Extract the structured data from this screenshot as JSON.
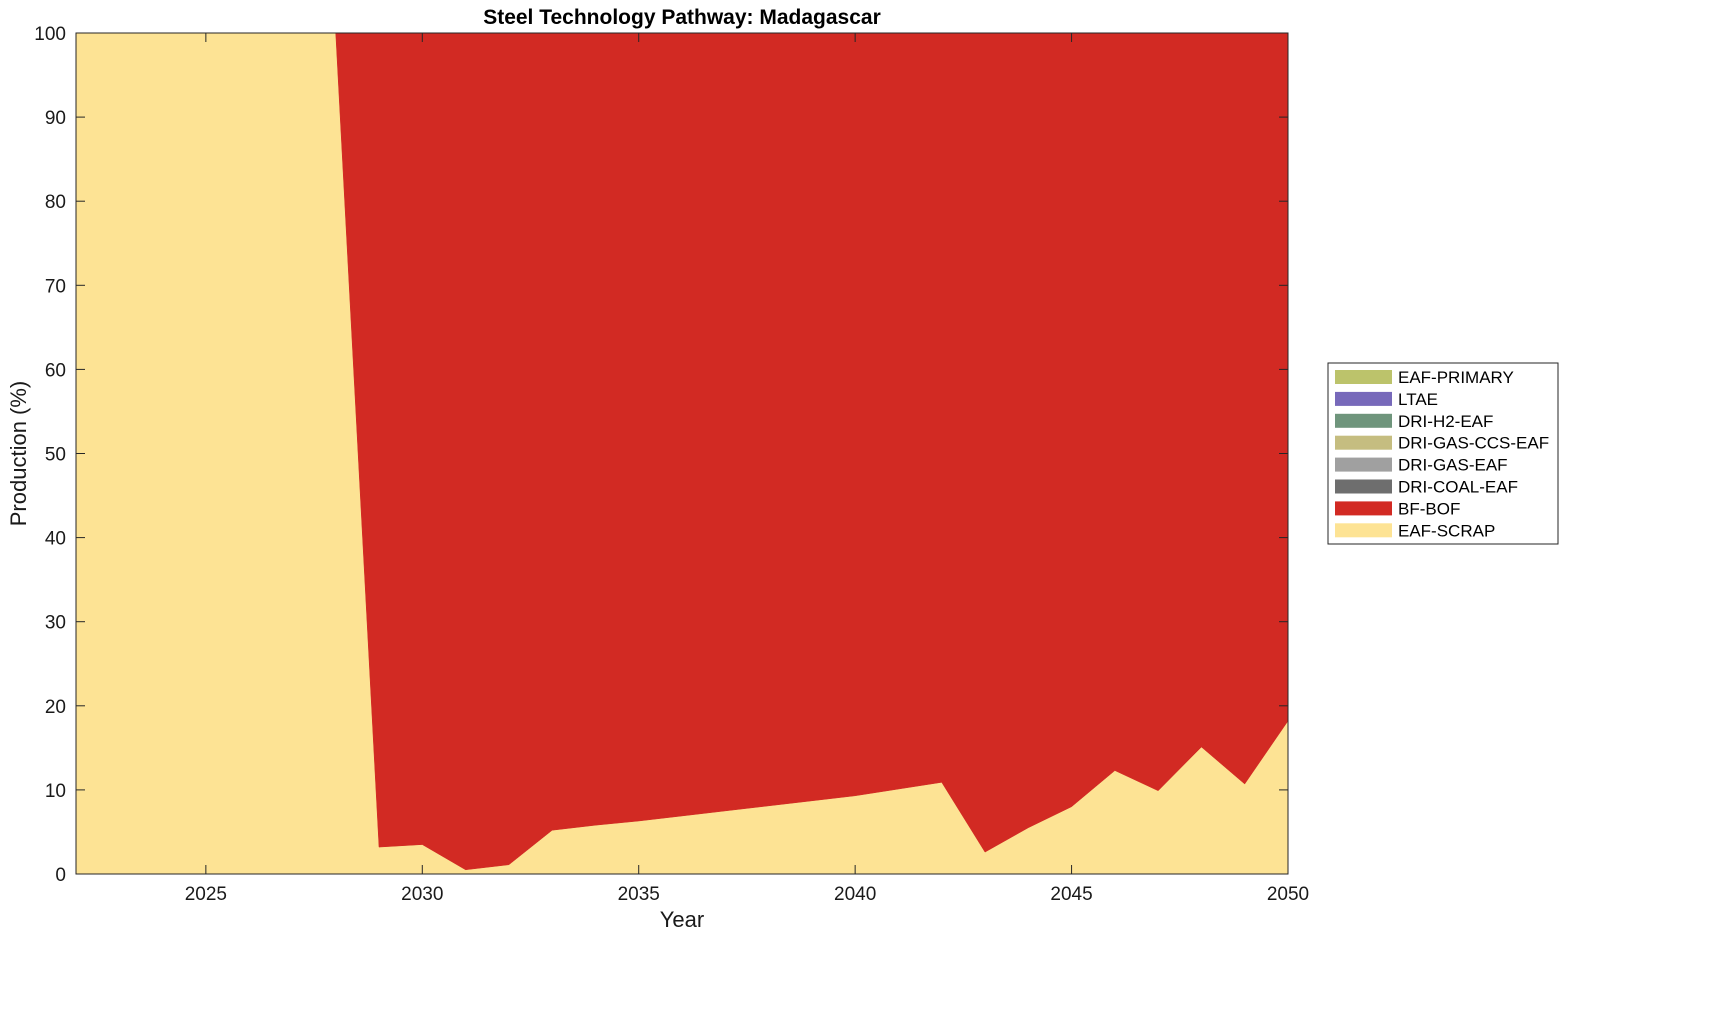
{
  "chart_data": {
    "type": "area",
    "stacked": true,
    "title": "Steel Technology Pathway: Madagascar",
    "xlabel": "Year",
    "ylabel": "Production (%)",
    "xlim": [
      2022,
      2050
    ],
    "ylim": [
      0,
      100
    ],
    "xticks": [
      2025,
      2030,
      2035,
      2040,
      2045,
      2050
    ],
    "yticks": [
      0,
      10,
      20,
      30,
      40,
      50,
      60,
      70,
      80,
      90,
      100
    ],
    "grid": false,
    "legend_position": "right",
    "x": [
      2022,
      2023,
      2024,
      2025,
      2026,
      2027,
      2028,
      2029,
      2030,
      2031,
      2032,
      2033,
      2034,
      2035,
      2036,
      2037,
      2038,
      2039,
      2040,
      2041,
      2042,
      2043,
      2044,
      2045,
      2046,
      2047,
      2048,
      2049,
      2050
    ],
    "series": [
      {
        "name": "EAF-SCRAP",
        "color": "#FDE394",
        "values": [
          100,
          100,
          100,
          100,
          100,
          100,
          100,
          3.2,
          3.5,
          0.5,
          1.1,
          5.2,
          5.8,
          6.3,
          6.9,
          7.5,
          8.1,
          8.7,
          9.3,
          10.1,
          10.9,
          2.6,
          5.5,
          8.0,
          12.3,
          9.9,
          15.1,
          10.7,
          18.2
        ]
      },
      {
        "name": "BF-BOF",
        "color": "#D22A23",
        "values": [
          0,
          0,
          0,
          0,
          0,
          0,
          0,
          96.8,
          96.5,
          99.5,
          98.9,
          94.8,
          94.2,
          93.7,
          93.1,
          92.5,
          91.9,
          91.3,
          90.7,
          89.9,
          89.1,
          97.4,
          94.5,
          92.0,
          87.7,
          90.1,
          84.9,
          89.3,
          81.8
        ]
      },
      {
        "name": "DRI-COAL-EAF",
        "color": "#6E6E6E",
        "values": [
          0,
          0,
          0,
          0,
          0,
          0,
          0,
          0,
          0,
          0,
          0,
          0,
          0,
          0,
          0,
          0,
          0,
          0,
          0,
          0,
          0,
          0,
          0,
          0,
          0,
          0,
          0,
          0,
          0
        ]
      },
      {
        "name": "DRI-GAS-EAF",
        "color": "#A0A0A0",
        "values": [
          0,
          0,
          0,
          0,
          0,
          0,
          0,
          0,
          0,
          0,
          0,
          0,
          0,
          0,
          0,
          0,
          0,
          0,
          0,
          0,
          0,
          0,
          0,
          0,
          0,
          0,
          0,
          0,
          0
        ]
      },
      {
        "name": "DRI-GAS-CCS-EAF",
        "color": "#C5BD80",
        "values": [
          0,
          0,
          0,
          0,
          0,
          0,
          0,
          0,
          0,
          0,
          0,
          0,
          0,
          0,
          0,
          0,
          0,
          0,
          0,
          0,
          0,
          0,
          0,
          0,
          0,
          0,
          0,
          0,
          0
        ]
      },
      {
        "name": "DRI-H2-EAF",
        "color": "#6F957C",
        "values": [
          0,
          0,
          0,
          0,
          0,
          0,
          0,
          0,
          0,
          0,
          0,
          0,
          0,
          0,
          0,
          0,
          0,
          0,
          0,
          0,
          0,
          0,
          0,
          0,
          0,
          0,
          0,
          0,
          0
        ]
      },
      {
        "name": "LTAE",
        "color": "#7769BA",
        "values": [
          0,
          0,
          0,
          0,
          0,
          0,
          0,
          0,
          0,
          0,
          0,
          0,
          0,
          0,
          0,
          0,
          0,
          0,
          0,
          0,
          0,
          0,
          0,
          0,
          0,
          0,
          0,
          0,
          0
        ]
      },
      {
        "name": "EAF-PRIMARY",
        "color": "#BCC36B",
        "values": [
          0,
          0,
          0,
          0,
          0,
          0,
          0,
          0,
          0,
          0,
          0,
          0,
          0,
          0,
          0,
          0,
          0,
          0,
          0,
          0,
          0,
          0,
          0,
          0,
          0,
          0,
          0,
          0,
          0
        ]
      }
    ],
    "legend_order": [
      "EAF-PRIMARY",
      "LTAE",
      "DRI-H2-EAF",
      "DRI-GAS-CCS-EAF",
      "DRI-GAS-EAF",
      "DRI-COAL-EAF",
      "BF-BOF",
      "EAF-SCRAP"
    ]
  }
}
